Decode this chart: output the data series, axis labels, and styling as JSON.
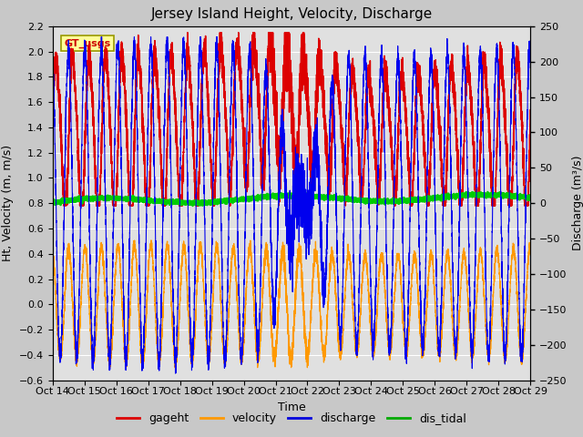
{
  "title": "Jersey Island Height, Velocity, Discharge",
  "xlabel": "Time",
  "ylabel_left": "Ht, Velocity (m, m/s)",
  "ylabel_right": "Discharge (m³/s)",
  "ylim_left": [
    -0.6,
    2.2
  ],
  "ylim_right": [
    -250,
    250
  ],
  "xlim": [
    0,
    15
  ],
  "xtick_labels": [
    "Oct 14",
    "Oct 15",
    "Oct 16",
    "Oct 17",
    "Oct 18",
    "Oct 19",
    "Oct 20",
    "Oct 21",
    "Oct 22",
    "Oct 23",
    "Oct 24",
    "Oct 25",
    "Oct 26",
    "Oct 27",
    "Oct 28",
    "Oct 29"
  ],
  "legend_labels": [
    "gageht",
    "velocity",
    "discharge",
    "dis_tidal"
  ],
  "legend_colors": [
    "#dd0000",
    "#ff9900",
    "#0000dd",
    "#00aa00"
  ],
  "gt_usgs_label": "GT_usgs",
  "gt_usgs_color": "#cc0000",
  "gt_usgs_bg": "#ffff99",
  "fig_bg_color": "#c8c8c8",
  "plot_bg_color": "#e0e0e0",
  "line_colors": {
    "gageht": "#dd0000",
    "velocity": "#ff9900",
    "discharge": "#0000ee",
    "dis_tidal": "#00cc00"
  },
  "title_fontsize": 11,
  "axis_fontsize": 9,
  "tick_fontsize": 8
}
